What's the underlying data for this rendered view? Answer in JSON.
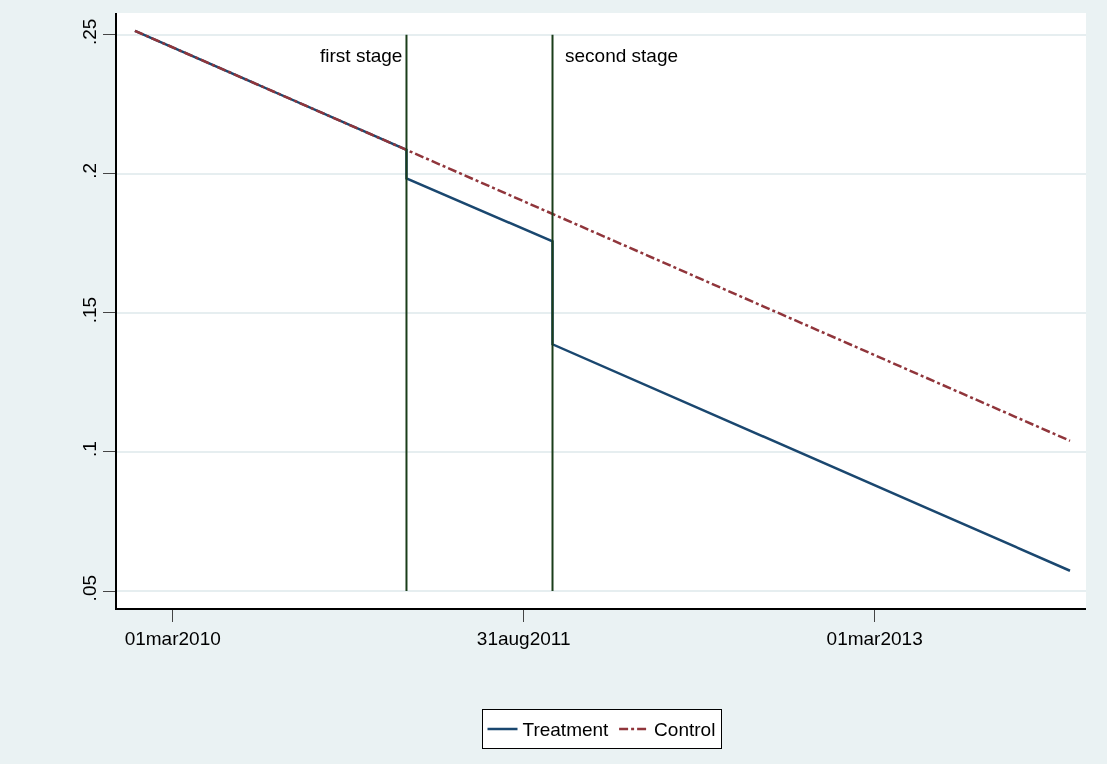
{
  "chart_data": {
    "type": "line",
    "xlim": [
      "2009-12-04",
      "2014-01-25"
    ],
    "xticks": [
      {
        "value": "2010-03-01",
        "label": "01mar2010"
      },
      {
        "value": "2011-08-31",
        "label": "31aug2011"
      },
      {
        "value": "2013-03-01",
        "label": "01mar2013"
      }
    ],
    "ylim": [
      0.0439,
      0.2578
    ],
    "yticks": [
      {
        "value": 0.05,
        "label": ".05"
      },
      {
        "value": 0.1,
        "label": ".1"
      },
      {
        "value": 0.15,
        "label": ".15"
      },
      {
        "value": 0.2,
        "label": ".2"
      },
      {
        "value": 0.25,
        "label": ".25"
      }
    ],
    "grid": "y",
    "legend": "bottom",
    "series": [
      {
        "name": "Treatment",
        "color": "#1a476f",
        "line_style": "solid",
        "x": [
          "2010-01-01",
          "2011-03-01",
          "2011-03-01",
          "2011-10-15",
          "2011-10-15",
          "2013-12-31"
        ],
        "values": [
          0.2514,
          0.2086,
          0.1983,
          0.1757,
          0.1387,
          0.0573
        ]
      },
      {
        "name": "Control",
        "color": "#90353b",
        "line_style": "dashdot",
        "x": [
          "2010-01-01",
          "2013-12-31"
        ],
        "values": [
          0.2514,
          0.104
        ]
      }
    ],
    "ref_lines": [
      {
        "axis": "x",
        "value": "2011-03-01",
        "label": "first stage",
        "color": "#1a3d1a"
      },
      {
        "axis": "x",
        "value": "2011-10-15",
        "label": "second stage",
        "color": "#1a3d1a"
      }
    ]
  }
}
